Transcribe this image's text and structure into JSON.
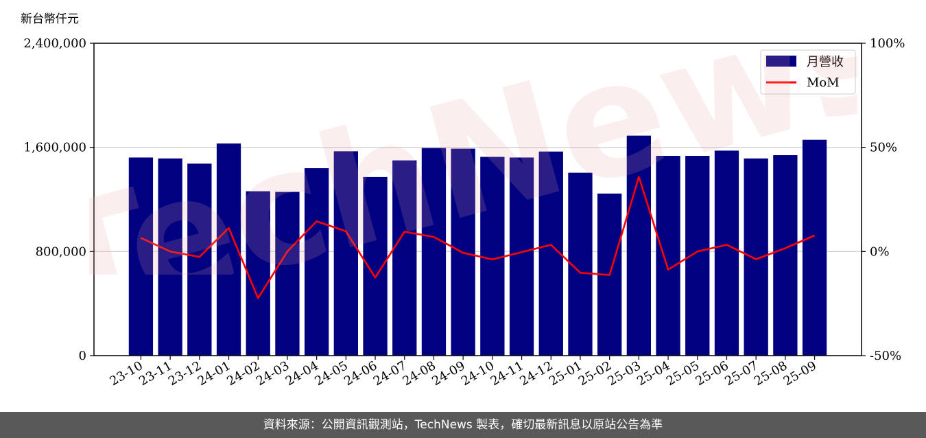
{
  "chart_data": {
    "type": "bar",
    "ylabel": "新台幣仟元",
    "categories": [
      "23-10",
      "23-11",
      "23-12",
      "24-01",
      "24-02",
      "24-03",
      "24-04",
      "24-05",
      "24-06",
      "24-07",
      "24-08",
      "24-09",
      "24-10",
      "24-11",
      "24-12",
      "25-01",
      "25-02",
      "25-03",
      "25-04",
      "25-05",
      "25-06",
      "25-07",
      "25-08",
      "25-09"
    ],
    "series": [
      {
        "name": "月營收",
        "type": "bar",
        "axis": "left",
        "color": "#000080",
        "values": [
          1522000,
          1515000,
          1475000,
          1630000,
          1263000,
          1258000,
          1440000,
          1570000,
          1372000,
          1500000,
          1595000,
          1590000,
          1527000,
          1522000,
          1568000,
          1405000,
          1245000,
          1690000,
          1535000,
          1535000,
          1575000,
          1515000,
          1540000,
          1658000
        ]
      },
      {
        "name": "MoM",
        "type": "line",
        "axis": "right",
        "color": "#ff0000",
        "values": [
          6.5,
          0,
          -2.6,
          11.3,
          -22.4,
          0,
          14.5,
          9.7,
          -12.5,
          9.5,
          7,
          -0.6,
          -3.8,
          -0.3,
          3.2,
          -10.2,
          -11.3,
          35.8,
          -8.7,
          0,
          3.2,
          -3.7,
          1.6,
          7.7
        ]
      }
    ],
    "ylim": [
      0,
      2400000
    ],
    "y_ticks": [
      "0",
      "800,000",
      "1,600,000",
      "2,400,000"
    ],
    "y2lim": [
      -50,
      100
    ],
    "y2_ticks": [
      "-50%",
      "0%",
      "50%",
      "100%"
    ],
    "grid": "horizontal",
    "legend_position": "top-right"
  },
  "watermark": "TechNews",
  "footer": {
    "text": "資料來源：公開資訊觀測站，TechNews 製表，確切最新訊息以原站公告為準"
  }
}
